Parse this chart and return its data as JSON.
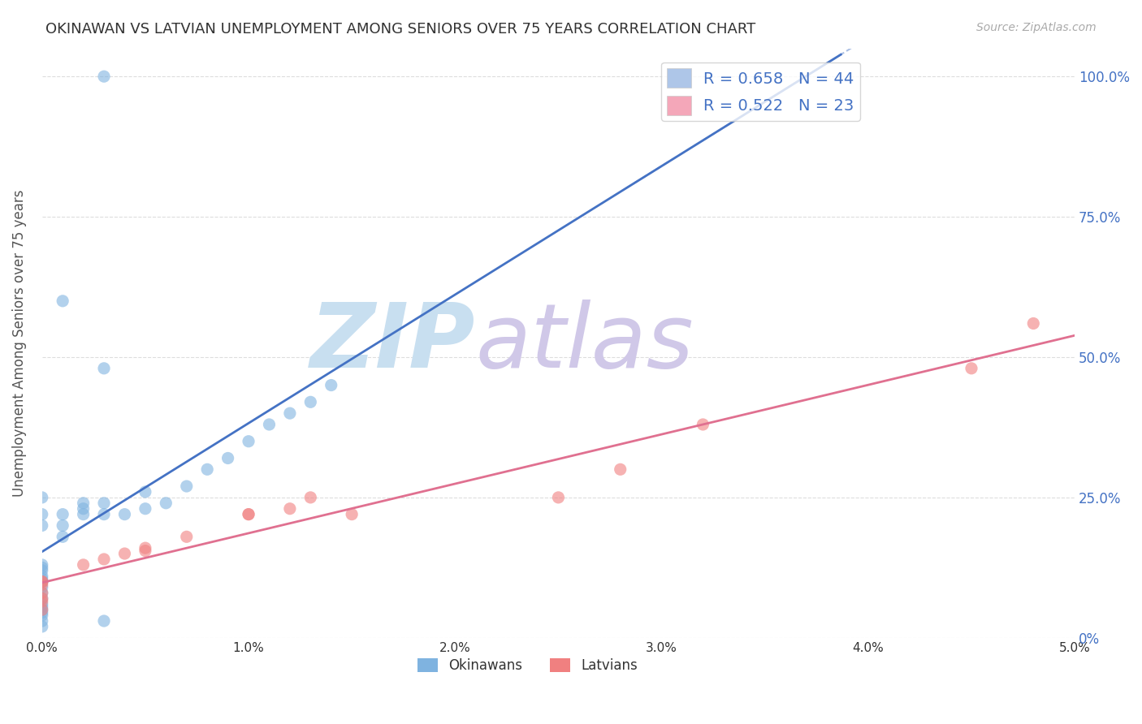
{
  "title": "OKINAWAN VS LATVIAN UNEMPLOYMENT AMONG SENIORS OVER 75 YEARS CORRELATION CHART",
  "source": "Source: ZipAtlas.com",
  "ylabel": "Unemployment Among Seniors over 75 years",
  "x_tick_labels": [
    "0.0%",
    "1.0%",
    "2.0%",
    "3.0%",
    "4.0%",
    "5.0%"
  ],
  "y_tick_labels_right": [
    "0%",
    "25.0%",
    "50.0%",
    "75.0%",
    "100.0%"
  ],
  "x_tick_positions": [
    0.0,
    0.01,
    0.02,
    0.03,
    0.04,
    0.05
  ],
  "y_tick_positions": [
    0.0,
    0.25,
    0.5,
    0.75,
    1.0
  ],
  "xlim": [
    0.0,
    0.05
  ],
  "ylim": [
    0.0,
    1.05
  ],
  "legend_upper": [
    {
      "label": "R = 0.658   N = 44",
      "color": "#aec6e8"
    },
    {
      "label": "R = 0.522   N = 23",
      "color": "#f4a7b9"
    }
  ],
  "legend_bottom": [
    {
      "label": "Okinawans",
      "color": "#7fb3e0"
    },
    {
      "label": "Latvians",
      "color": "#f08080"
    }
  ],
  "okinawan_color": "#7fb3e0",
  "latvian_color": "#f08080",
  "okinawan_line_color": "#4472c4",
  "latvian_line_color": "#e07090",
  "dot_size": 120,
  "dot_alpha": 0.6,
  "background_color": "#ffffff",
  "grid_color": "#dddddd",
  "watermark_zip": "ZIP",
  "watermark_atlas": "atlas",
  "watermark_color_zip": "#c8dff0",
  "watermark_color_atlas": "#d0c8e8",
  "title_color": "#333333",
  "axis_label_color": "#555555",
  "right_tick_color": "#4472c4",
  "source_color": "#aaaaaa"
}
